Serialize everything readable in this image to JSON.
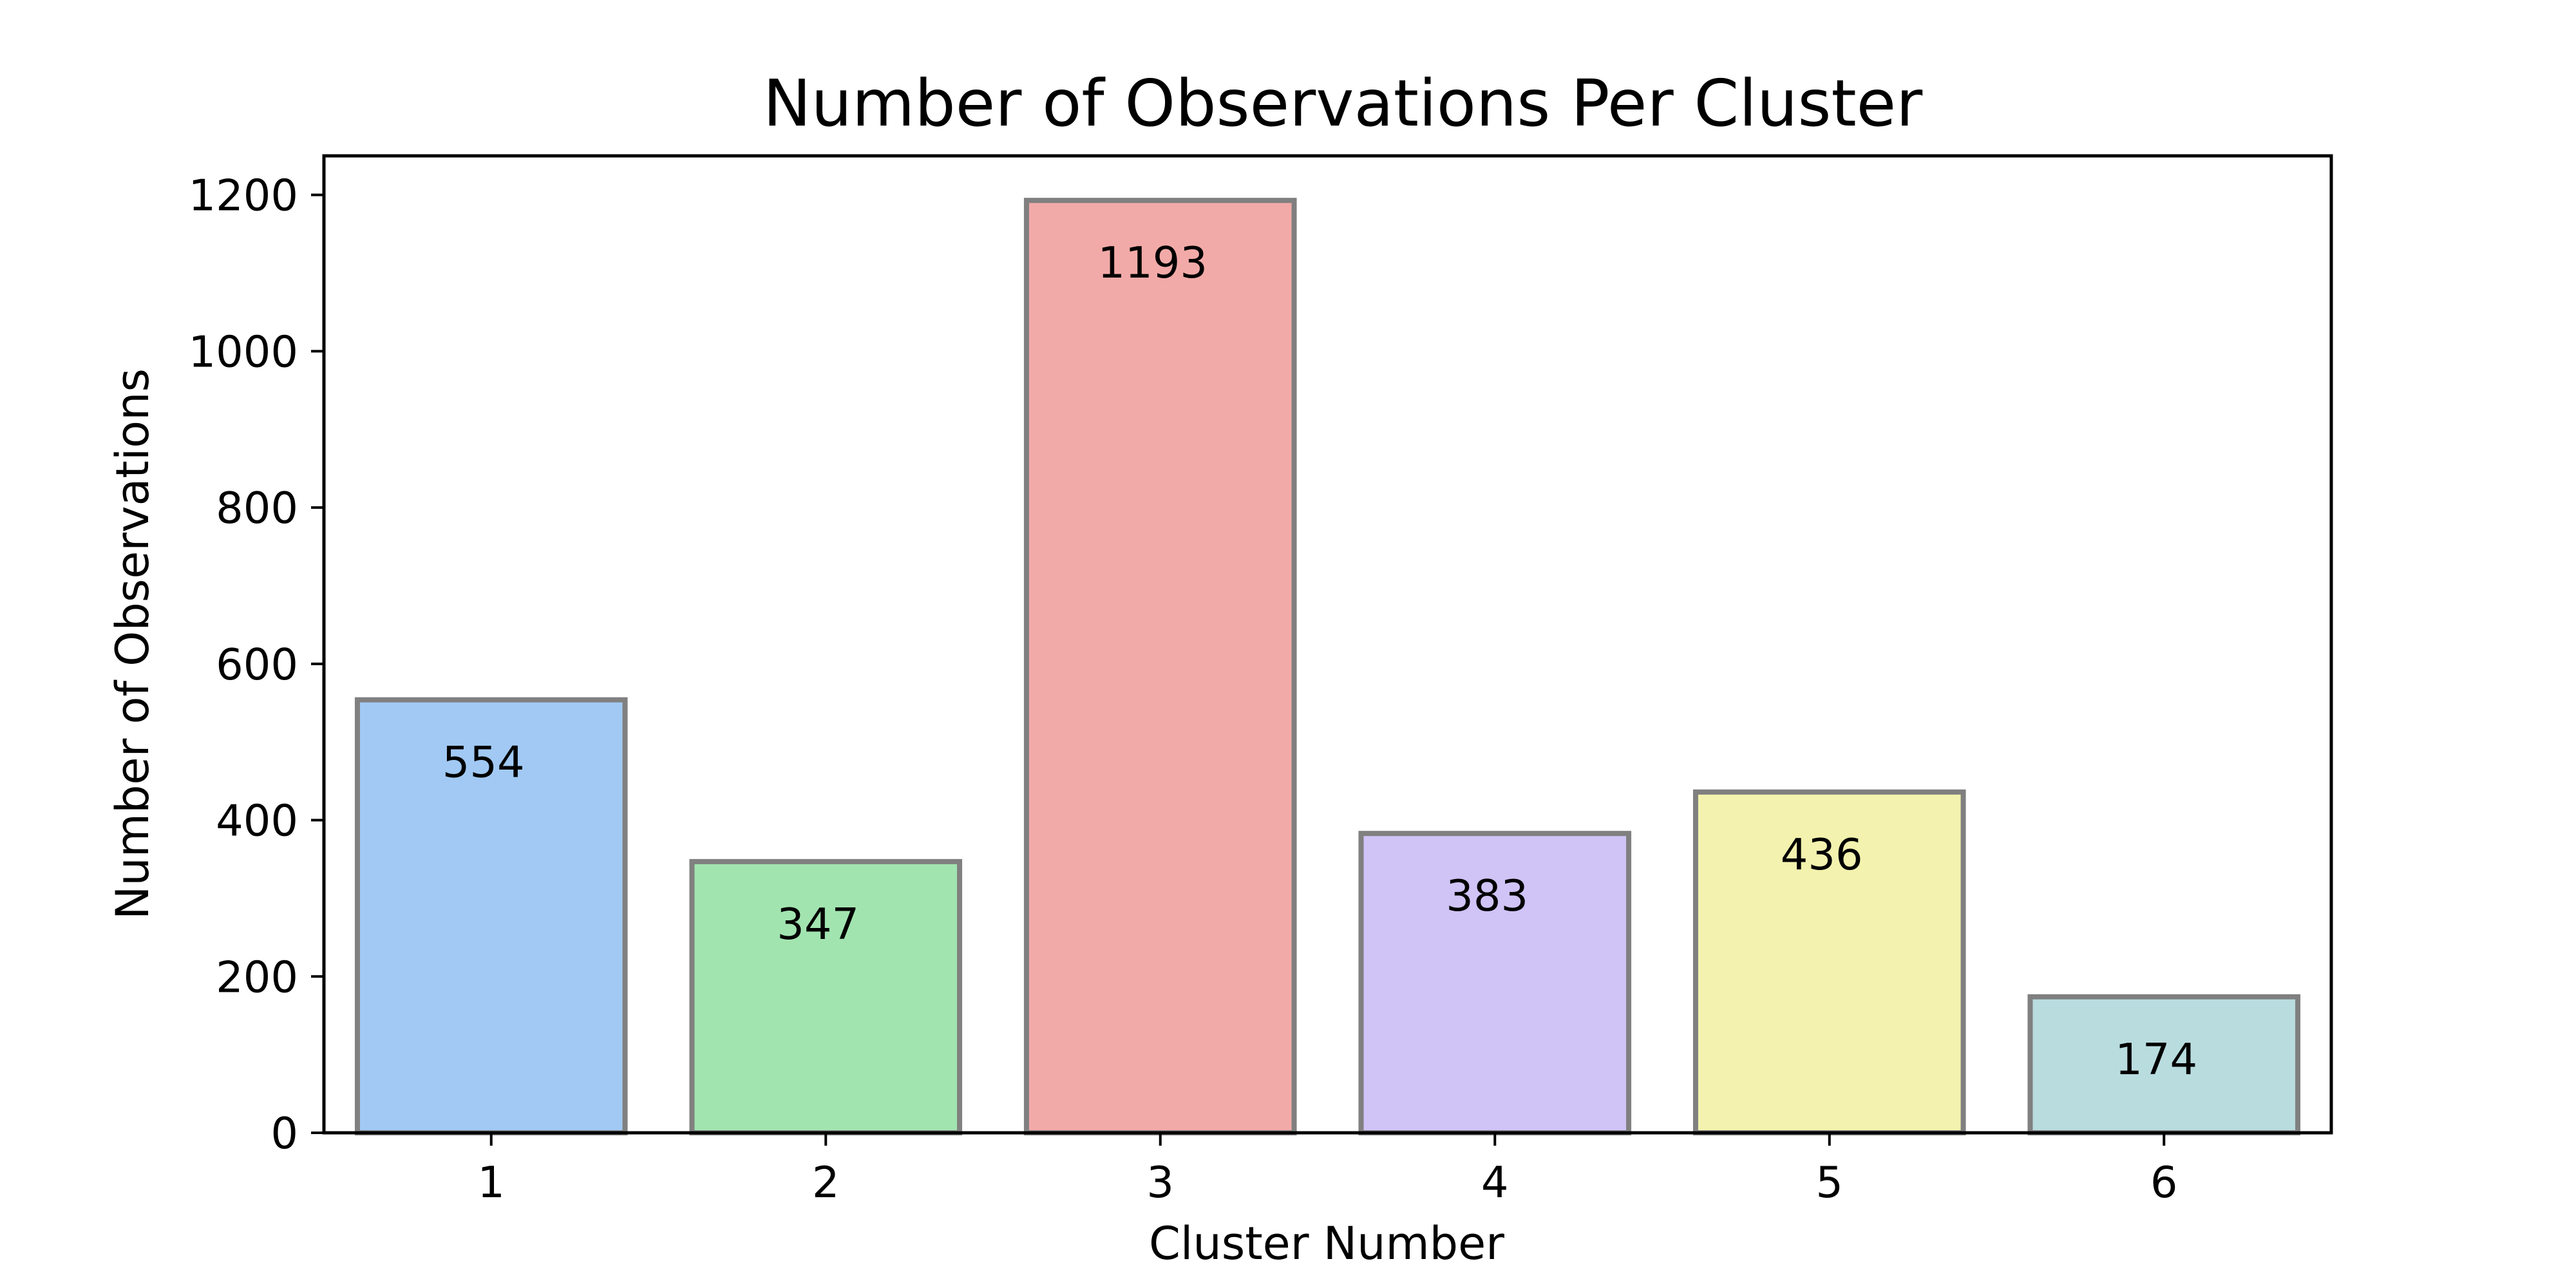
{
  "chart_data": {
    "type": "bar",
    "title": "Number of Observations Per Cluster",
    "xlabel": "Cluster Number",
    "ylabel": "Number of Observations",
    "categories": [
      "1",
      "2",
      "3",
      "4",
      "5",
      "6"
    ],
    "values": [
      554,
      347,
      1193,
      383,
      436,
      174
    ],
    "data_labels": [
      "554",
      "347",
      "1193",
      "383",
      "436",
      "174"
    ],
    "ylim": [
      0,
      1250
    ],
    "yticks": [
      0,
      200,
      400,
      600,
      800,
      1000,
      1200
    ],
    "ytick_labels": [
      "0",
      "200",
      "400",
      "600",
      "800",
      "1000",
      "1200"
    ],
    "bar_colors": [
      "#a1c9f4",
      "#a2e4b0",
      "#f2aaa8",
      "#d0c3f6",
      "#f3f2ae",
      "#b9dcdf"
    ],
    "bar_edge_color": "#808080",
    "grid": false,
    "legend": "none"
  }
}
